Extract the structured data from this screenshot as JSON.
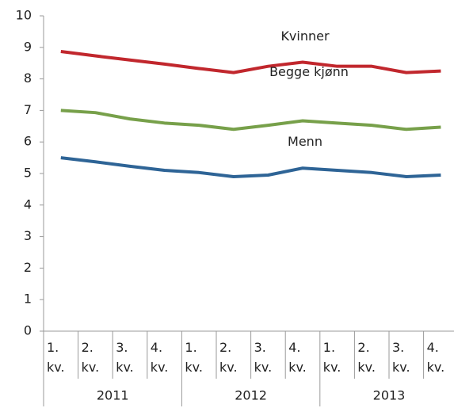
{
  "chart_data": {
    "type": "line",
    "categories": [
      "1. kv.",
      "2. kv.",
      "3. kv.",
      "4. kv.",
      "1. kv.",
      "2. kv.",
      "3. kv.",
      "4. kv.",
      "1. kv.",
      "2. kv.",
      "3. kv.",
      "4. kv."
    ],
    "years": [
      "2011",
      "2012",
      "2013"
    ],
    "series": [
      {
        "name": "Kvinner",
        "color": "#c1272d",
        "values": [
          8.87,
          8.73,
          8.6,
          8.47,
          8.33,
          8.2,
          8.4,
          8.53,
          8.4,
          8.4,
          8.2,
          8.25
        ]
      },
      {
        "name": "Begge kjønn",
        "color": "#77a04a",
        "values": [
          7.0,
          6.93,
          6.73,
          6.6,
          6.53,
          6.4,
          6.53,
          6.67,
          6.6,
          6.53,
          6.4,
          6.47
        ]
      },
      {
        "name": "Menn",
        "color": "#2e6496",
        "values": [
          5.5,
          5.37,
          5.23,
          5.1,
          5.03,
          4.9,
          4.95,
          5.17,
          5.1,
          5.03,
          4.9,
          4.95
        ]
      }
    ],
    "ylim": [
      0,
      10
    ],
    "yticks": [
      0,
      1,
      2,
      3,
      4,
      5,
      6,
      7,
      8,
      9,
      10
    ],
    "grid": false
  }
}
